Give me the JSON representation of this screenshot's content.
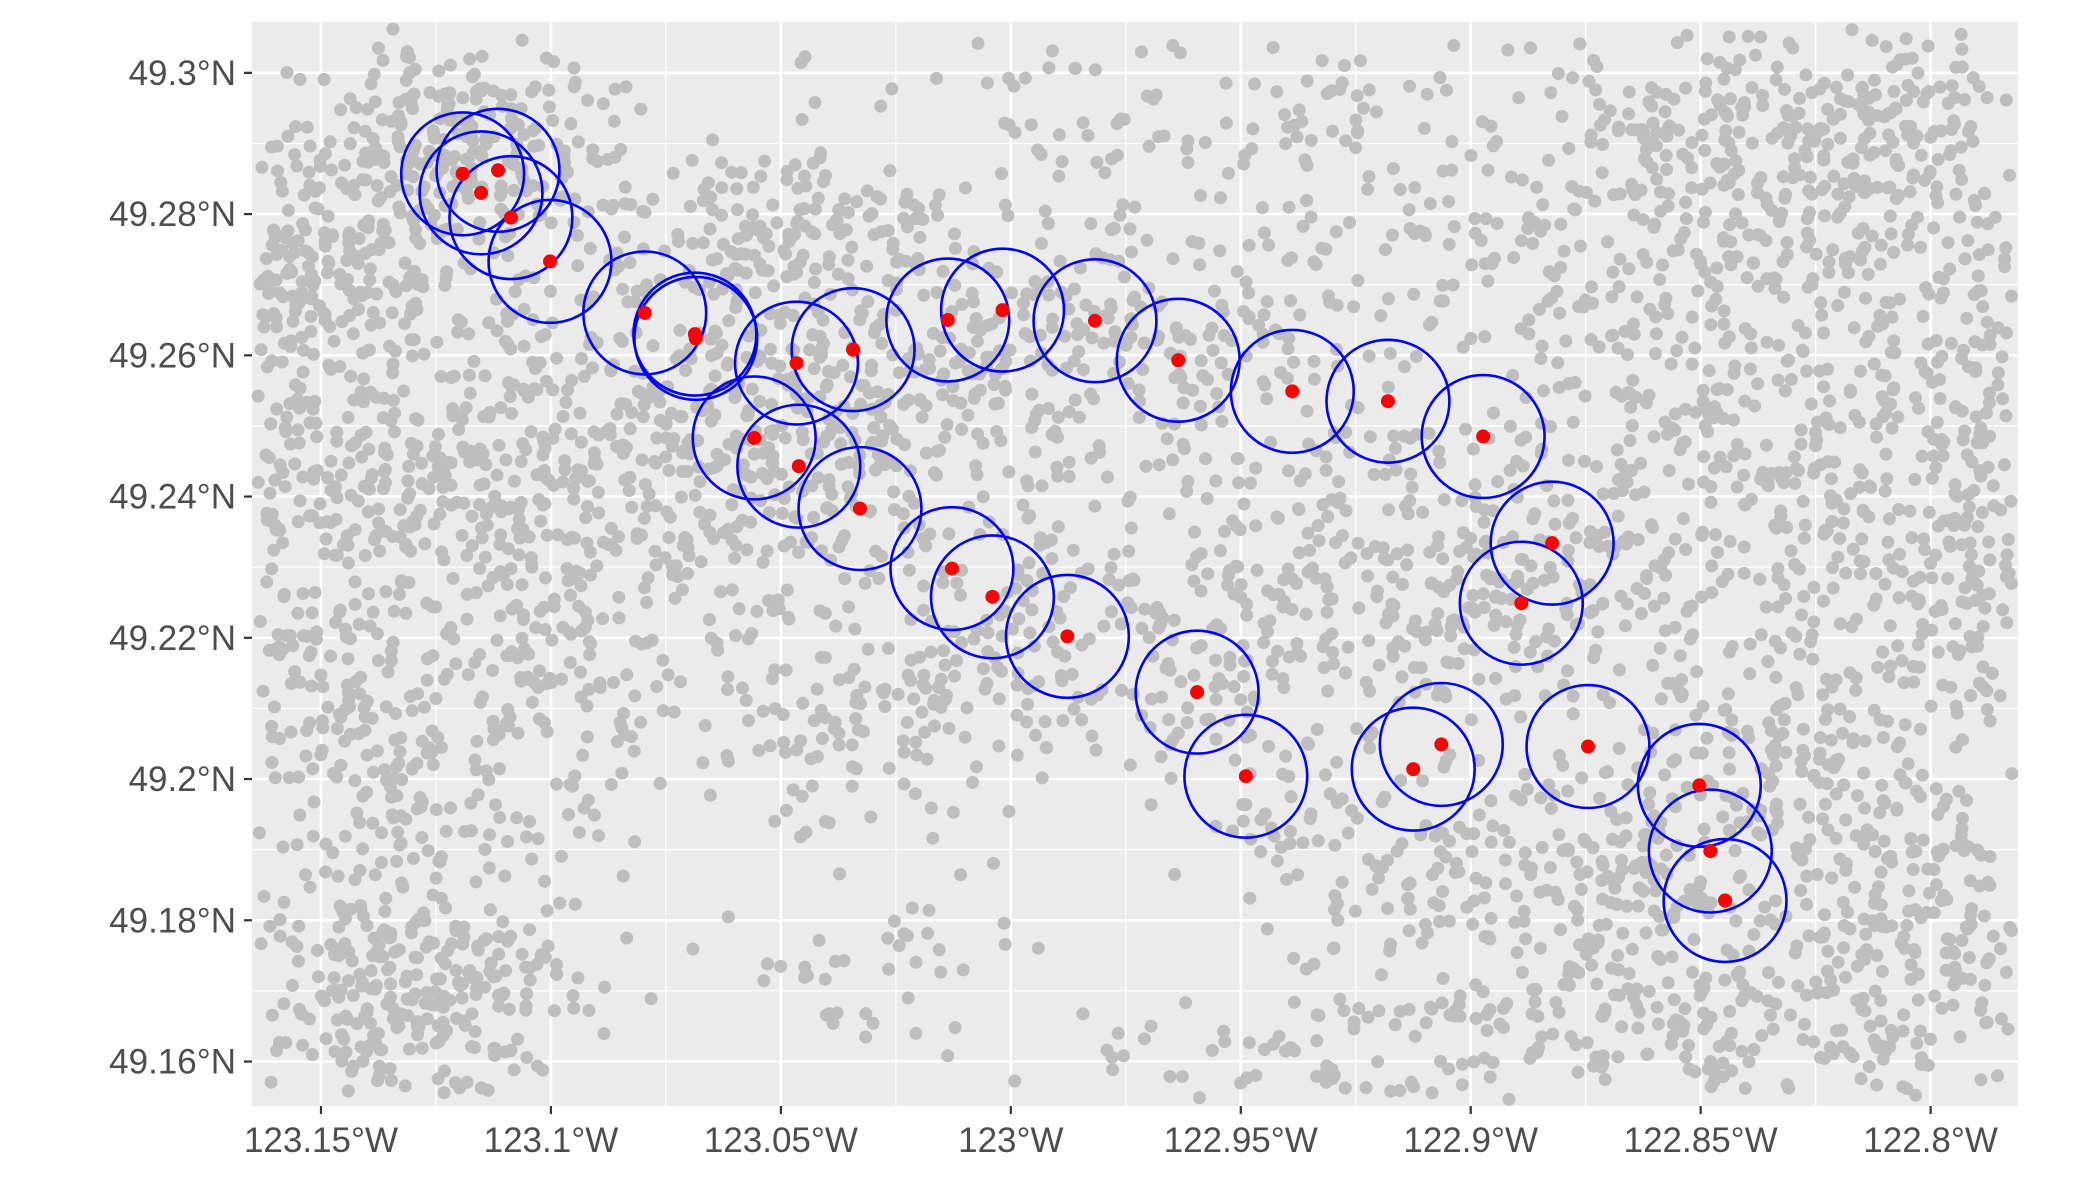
{
  "chart_data": {
    "type": "map",
    "colors": {
      "panel_bg": "#EBEBEB",
      "grid": "#FFFFFF",
      "background_points": "#BEBEBE",
      "station_points": "#FF0000",
      "buffer_circles": "#0000FF",
      "tick_text": "#4D4D4D",
      "tick_mark": "#333333"
    },
    "x_axis": {
      "range": [
        -123.165,
        -122.781
      ],
      "ticks": [
        {
          "value": -123.15,
          "label": "123.15°W"
        },
        {
          "value": -123.1,
          "label": "123.1°W"
        },
        {
          "value": -123.05,
          "label": "123.05°W"
        },
        {
          "value": -123.0,
          "label": "123°W"
        },
        {
          "value": -122.95,
          "label": "122.95°W"
        },
        {
          "value": -122.9,
          "label": "122.9°W"
        },
        {
          "value": -122.85,
          "label": "122.85°W"
        },
        {
          "value": -122.8,
          "label": "122.8°W"
        }
      ]
    },
    "y_axis": {
      "range": [
        49.1537,
        49.3072
      ],
      "ticks": [
        {
          "value": 49.16,
          "label": "49.16°N"
        },
        {
          "value": 49.18,
          "label": "49.18°N"
        },
        {
          "value": 49.2,
          "label": "49.2°N"
        },
        {
          "value": 49.22,
          "label": "49.22°N"
        },
        {
          "value": 49.24,
          "label": "49.24°N"
        },
        {
          "value": 49.26,
          "label": "49.26°N"
        },
        {
          "value": 49.28,
          "label": "49.28°N"
        },
        {
          "value": 49.3,
          "label": "49.3°N"
        }
      ]
    },
    "buffer_radius_deg_lat": 0.0087,
    "stations": [
      {
        "lon": -123.1192,
        "lat": 49.2857
      },
      {
        "lon": -123.1152,
        "lat": 49.283
      },
      {
        "lon": -123.1115,
        "lat": 49.2862
      },
      {
        "lon": -123.1087,
        "lat": 49.2795
      },
      {
        "lon": -123.1002,
        "lat": 49.2733
      },
      {
        "lon": -123.0796,
        "lat": 49.266
      },
      {
        "lon": -123.0687,
        "lat": 49.263
      },
      {
        "lon": -123.0685,
        "lat": 49.2624
      },
      {
        "lon": -123.0558,
        "lat": 49.2483
      },
      {
        "lon": -123.0466,
        "lat": 49.2589
      },
      {
        "lon": -123.0461,
        "lat": 49.2443
      },
      {
        "lon": -123.0343,
        "lat": 49.2608
      },
      {
        "lon": -123.0328,
        "lat": 49.2383
      },
      {
        "lon": -123.0137,
        "lat": 49.265
      },
      {
        "lon": -123.0128,
        "lat": 49.2298
      },
      {
        "lon": -123.004,
        "lat": 49.2258
      },
      {
        "lon": -123.0018,
        "lat": 49.2664
      },
      {
        "lon": -122.9877,
        "lat": 49.2202
      },
      {
        "lon": -122.9817,
        "lat": 49.2649
      },
      {
        "lon": -122.9636,
        "lat": 49.2593
      },
      {
        "lon": -122.9595,
        "lat": 49.2123
      },
      {
        "lon": -122.9489,
        "lat": 49.2004
      },
      {
        "lon": -122.9388,
        "lat": 49.2549
      },
      {
        "lon": -122.918,
        "lat": 49.2535
      },
      {
        "lon": -122.9125,
        "lat": 49.2014
      },
      {
        "lon": -122.9064,
        "lat": 49.2049
      },
      {
        "lon": -122.8973,
        "lat": 49.2485
      },
      {
        "lon": -122.889,
        "lat": 49.2249
      },
      {
        "lon": -122.8823,
        "lat": 49.2334
      },
      {
        "lon": -122.8745,
        "lat": 49.2046
      },
      {
        "lon": -122.8503,
        "lat": 49.1991
      },
      {
        "lon": -122.8479,
        "lat": 49.1898
      },
      {
        "lon": -122.8447,
        "lat": 49.1828
      }
    ],
    "background_points_note_free": true
  }
}
